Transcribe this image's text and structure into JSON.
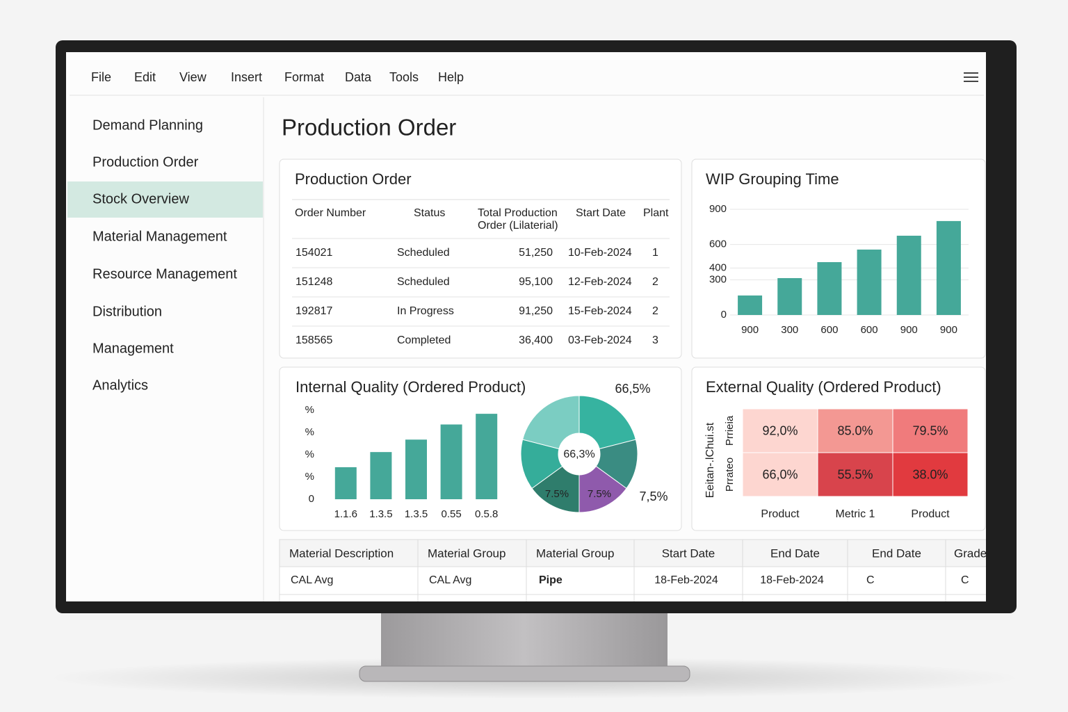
{
  "menu": [
    "File",
    "Edit",
    "View",
    "Insert",
    "Format",
    "Data",
    "Tools",
    "Help"
  ],
  "sidebar": {
    "items": [
      "Demand Planning",
      "Production Order",
      "Stock Overview",
      "Material Management",
      "Resource Management",
      "Distribution",
      "Management",
      "Analytics"
    ],
    "active": 2
  },
  "page_title": "Production Order",
  "production_table": {
    "title": "Production Order",
    "headers": [
      [
        "Order Number"
      ],
      [
        "Status"
      ],
      [
        "Total Production",
        "Order (Lilaterial)"
      ],
      [
        "Start Date"
      ],
      [
        "Plant"
      ]
    ],
    "rows": [
      [
        "154021",
        "Scheduled",
        "51,250",
        "10-Feb-2024",
        "1"
      ],
      [
        "151248",
        "Scheduled",
        "95,100",
        "12-Feb-2024",
        "2"
      ],
      [
        "192817",
        "In Progress",
        "91,250",
        "15-Feb-2024",
        "2"
      ],
      [
        "158565",
        "Completed",
        "36,400",
        "03-Feb-2024",
        "3"
      ]
    ]
  },
  "wip_chart": {
    "type": "bar",
    "title": "WIP Grouping Time",
    "categories": [
      "900",
      "300",
      "600",
      "600",
      "900",
      "900"
    ],
    "values": [
      166,
      314,
      450,
      557,
      675,
      800
    ],
    "color": "#45a899",
    "ylim": [
      0,
      900
    ],
    "yticks": [
      0,
      300,
      400,
      600,
      900
    ],
    "grid": true
  },
  "internal_quality": {
    "title": "Internal Quality (Ordered Product)",
    "bar": {
      "type": "bar",
      "categories": [
        "1.1.6",
        "1.3.5",
        "1.3.5",
        "0.55",
        "0.5.8"
      ],
      "values": [
        36,
        53,
        67,
        84,
        96
      ],
      "color": "#45a899",
      "ylim": [
        0,
        100
      ],
      "yticks": [
        0,
        {
          "value": 25,
          "label": "%"
        },
        {
          "value": 50,
          "label": "%"
        },
        {
          "value": 75,
          "label": "%"
        },
        {
          "value": 100,
          "label": "%"
        }
      ],
      "grid": false
    },
    "pie": {
      "type": "pie",
      "values": [
        21,
        14,
        15,
        15,
        14,
        21
      ],
      "colors": [
        "#36b3a0",
        "#3a8c82",
        "#8f5aac",
        "#2f7d6c",
        "#35ad9a",
        "#7bcdc2"
      ],
      "center_label": "66,3%",
      "annotations": [
        "66,5%",
        "7,5%",
        "7.5%",
        "7.5%"
      ]
    }
  },
  "external_quality": {
    "type": "heatmap",
    "title": "External Quality (Ordered Product)",
    "y_label": "Eeitan-.lChui.st",
    "rows": [
      "Prrieia",
      "Prrateo"
    ],
    "columns": [
      "Product",
      "Metric 1",
      "Product"
    ],
    "values": [
      [
        92.0,
        85.0,
        79.5
      ],
      [
        66.0,
        55.5,
        38.0
      ]
    ],
    "value_labels": [
      [
        "92,0%",
        "85.0%",
        "79.5%"
      ],
      [
        "66,0%",
        "55.5%",
        "38.0%"
      ]
    ],
    "colors": [
      [
        "#fdd6d0",
        "#f39893",
        "#f07b7c"
      ],
      [
        "#fdd6d0",
        "#d8444c",
        "#e13a3f"
      ]
    ]
  },
  "material_table": {
    "headers": [
      "Material Description",
      "Material Group",
      "Material Group",
      "Start Date",
      "End Date",
      "End Date",
      "Grade"
    ],
    "rows": [
      [
        "CAL Avg",
        "CAL Avg",
        "Pipe",
        "18-Feb-2024",
        "18-Feb-2024",
        "C",
        "C"
      ]
    ]
  }
}
